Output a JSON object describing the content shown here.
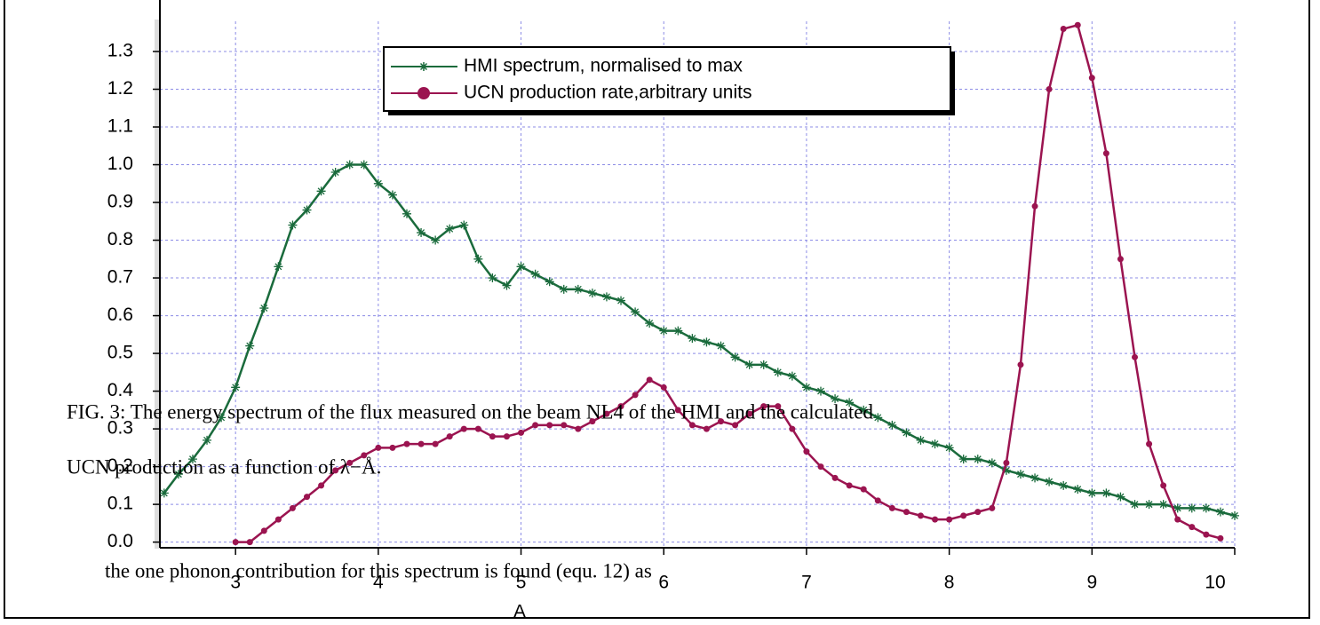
{
  "chart_data": {
    "type": "line",
    "xlabel": "A",
    "x": [
      2.5,
      2.6,
      2.7,
      2.8,
      2.9,
      3.0,
      3.1,
      3.2,
      3.3,
      3.4,
      3.5,
      3.6,
      3.7,
      3.8,
      3.9,
      4.0,
      4.1,
      4.2,
      4.3,
      4.4,
      4.5,
      4.6,
      4.7,
      4.8,
      4.9,
      5.0,
      5.1,
      5.2,
      5.3,
      5.4,
      5.5,
      5.6,
      5.7,
      5.8,
      5.9,
      6.0,
      6.1,
      6.2,
      6.3,
      6.4,
      6.5,
      6.6,
      6.7,
      6.8,
      6.9,
      7.0,
      7.1,
      7.2,
      7.3,
      7.4,
      7.5,
      7.6,
      7.7,
      7.8,
      7.9,
      8.0,
      8.1,
      8.2,
      8.3,
      8.4,
      8.5,
      8.6,
      8.7,
      8.8,
      8.9,
      9.0,
      9.1,
      9.2,
      9.3,
      9.4,
      9.5,
      9.6,
      9.7,
      9.8,
      9.9,
      10.0
    ],
    "series": [
      {
        "name": "HMI spectrum, normalised to max",
        "color": "#1a6b3c",
        "marker": "asterisk",
        "values": [
          0.13,
          0.18,
          0.22,
          0.27,
          0.33,
          0.41,
          0.52,
          0.62,
          0.73,
          0.84,
          0.88,
          0.93,
          0.98,
          1.0,
          1.0,
          0.95,
          0.92,
          0.87,
          0.82,
          0.8,
          0.83,
          0.84,
          0.75,
          0.7,
          0.68,
          0.73,
          0.71,
          0.69,
          0.67,
          0.67,
          0.66,
          0.65,
          0.64,
          0.61,
          0.58,
          0.56,
          0.56,
          0.54,
          0.53,
          0.52,
          0.49,
          0.47,
          0.47,
          0.45,
          0.44,
          0.41,
          0.4,
          0.38,
          0.37,
          0.35,
          0.33,
          0.31,
          0.29,
          0.27,
          0.26,
          0.25,
          0.22,
          0.22,
          0.21,
          0.19,
          0.18,
          0.17,
          0.16,
          0.15,
          0.14,
          0.13,
          0.13,
          0.12,
          0.1,
          0.1,
          0.1,
          0.09,
          0.09,
          0.09,
          0.08,
          0.07
        ]
      },
      {
        "name": "UCN production rate,arbitrary units",
        "color": "#9b1450",
        "marker": "circle",
        "values": [
          null,
          null,
          null,
          null,
          null,
          0.0,
          0.0,
          0.03,
          0.06,
          0.09,
          0.12,
          0.15,
          0.19,
          0.21,
          0.23,
          0.25,
          0.25,
          0.26,
          0.26,
          0.26,
          0.28,
          0.3,
          0.3,
          0.28,
          0.28,
          0.29,
          0.31,
          0.31,
          0.31,
          0.3,
          0.32,
          0.34,
          0.36,
          0.39,
          0.43,
          0.41,
          0.35,
          0.31,
          0.3,
          0.32,
          0.31,
          0.34,
          0.36,
          0.36,
          0.3,
          0.24,
          0.2,
          0.17,
          0.15,
          0.14,
          0.11,
          0.09,
          0.08,
          0.07,
          0.06,
          0.06,
          0.07,
          0.08,
          0.09,
          0.21,
          0.47,
          0.89,
          1.2,
          1.36,
          1.37,
          1.23,
          1.03,
          0.75,
          0.49,
          0.26,
          0.15,
          0.06,
          0.04,
          0.02,
          0.01,
          null
        ]
      }
    ],
    "xlim": [
      2.47,
      10.0
    ],
    "ylim": [
      -0.015,
      1.38
    ],
    "xticks": [
      3,
      4,
      5,
      6,
      7,
      8,
      9,
      10
    ],
    "yticks": [
      {
        "value": 0,
        "label": "0.0"
      },
      0.1,
      0.2,
      0.3,
      0.4,
      0.5,
      0.6,
      0.7,
      0.8,
      0.9,
      {
        "value": 1,
        "label": "1.0"
      },
      1.1,
      1.2,
      1.3
    ],
    "grid": true,
    "legend": "top"
  },
  "caption": [
    "FIG. 3: The energy spectrum of the flux measured on the beam NL4 of the HMI and the calculated",
    "UCN production as a function of λ−Å."
  ],
  "body": "the one phonon contribution for this spectrum is found (equ. 12) as"
}
